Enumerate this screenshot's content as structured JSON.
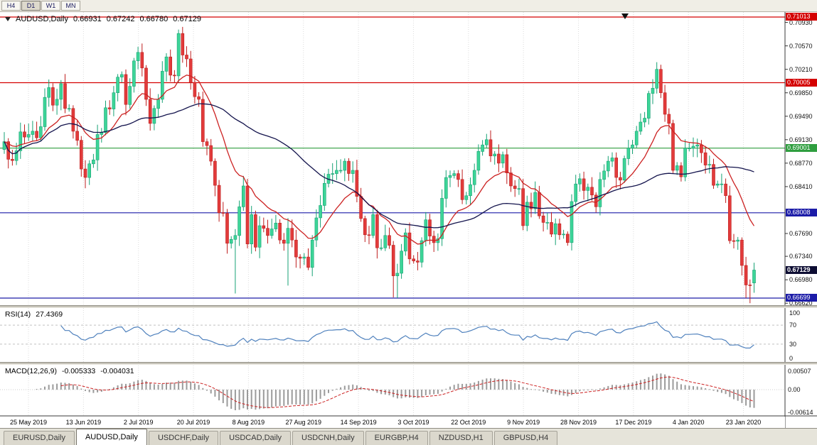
{
  "toolbar": {
    "timeframes": [
      "H4",
      "D1",
      "W1",
      "MN"
    ],
    "active": "D1"
  },
  "chart": {
    "title": "AUDUSD,Daily",
    "ohlc": {
      "open": "0.66931",
      "high": "0.67242",
      "low": "0.66780",
      "close": "0.67129"
    }
  },
  "chart_data": {
    "type": "candlestick",
    "symbol": "AUDUSD",
    "timeframe": "Daily",
    "ylim": [
      0.6655,
      0.7109
    ],
    "x_ticks": [
      "25 May 2019",
      "13 Jun 2019",
      "2 Jul 2019",
      "20 Jul 2019",
      "8 Aug 2019",
      "27 Aug 2019",
      "14 Sep 2019",
      "3 Oct 2019",
      "22 Oct 2019",
      "9 Nov 2019",
      "28 Nov 2019",
      "17 Dec 2019",
      "4 Jan 2020",
      "23 Jan 2020"
    ],
    "price_ticks": [
      "0.70930",
      "0.70570",
      "0.70210",
      "0.69850",
      "0.69490",
      "0.69130",
      "0.68770",
      "0.68410",
      "0.67690",
      "0.67340",
      "0.66980",
      "0.66620"
    ],
    "hlines": [
      {
        "price": 0.71013,
        "label": "0.71013",
        "color": "#d40000"
      },
      {
        "price": 0.70005,
        "label": "0.70005",
        "color": "#d40000"
      },
      {
        "price": 0.69001,
        "label": "0.69001",
        "color": "#2f9e3f"
      },
      {
        "price": 0.68008,
        "label": "0.68008",
        "color": "#1c1ca8"
      },
      {
        "price": 0.66699,
        "label": "0.66699",
        "color": "#1c1ca8"
      }
    ],
    "current_price": {
      "value": 0.67129,
      "label": "0.67129",
      "color": "#0d0d33"
    },
    "candle_colors": {
      "up": "#3dd598",
      "up_border": "#17a274",
      "down": "#e23b3b",
      "down_border": "#bf1f1f"
    },
    "ma_lines": [
      {
        "type": "ema",
        "period": 15,
        "color": "#cc2222"
      },
      {
        "type": "sma",
        "period": 45,
        "color": "#14144d"
      }
    ],
    "closes": [
      0.691,
      0.6883,
      0.6881,
      0.6896,
      0.6925,
      0.6917,
      0.6921,
      0.6926,
      0.6916,
      0.6933,
      0.6978,
      0.6993,
      0.6966,
      0.6975,
      0.6999,
      0.6961,
      0.6961,
      0.6926,
      0.6912,
      0.6868,
      0.6855,
      0.6876,
      0.6882,
      0.6921,
      0.6924,
      0.6962,
      0.696,
      0.6985,
      0.7009,
      0.7013,
      0.6967,
      0.6995,
      0.7034,
      0.7047,
      0.7023,
      0.6975,
      0.6938,
      0.6961,
      0.6975,
      0.7018,
      0.704,
      0.7012,
      0.7011,
      0.7076,
      0.7043,
      0.7037,
      0.7001,
      0.6979,
      0.6975,
      0.691,
      0.6904,
      0.688,
      0.6843,
      0.6801,
      0.68,
      0.6754,
      0.676,
      0.6766,
      0.681,
      0.6842,
      0.6753,
      0.6798,
      0.6748,
      0.6781,
      0.6777,
      0.6766,
      0.6776,
      0.6785,
      0.6759,
      0.6754,
      0.6777,
      0.6759,
      0.6733,
      0.6731,
      0.6733,
      0.6717,
      0.6759,
      0.6793,
      0.6812,
      0.6846,
      0.686,
      0.6861,
      0.6866,
      0.6866,
      0.688,
      0.6861,
      0.6866,
      0.6826,
      0.6792,
      0.6767,
      0.6766,
      0.6798,
      0.6747,
      0.6747,
      0.6766,
      0.6751,
      0.6704,
      0.6708,
      0.6742,
      0.677,
      0.673,
      0.6727,
      0.6725,
      0.6758,
      0.679,
      0.6765,
      0.6755,
      0.6761,
      0.6823,
      0.6855,
      0.6858,
      0.6861,
      0.6852,
      0.6821,
      0.6827,
      0.6844,
      0.6866,
      0.6895,
      0.6905,
      0.6913,
      0.6888,
      0.6891,
      0.6877,
      0.689,
      0.6862,
      0.6842,
      0.6838,
      0.6838,
      0.6781,
      0.6817,
      0.6807,
      0.6832,
      0.6796,
      0.6786,
      0.6786,
      0.6768,
      0.6784,
      0.6767,
      0.6768,
      0.6755,
      0.6818,
      0.6845,
      0.6853,
      0.6835,
      0.684,
      0.6828,
      0.681,
      0.6852,
      0.6865,
      0.688,
      0.6885,
      0.6855,
      0.6851,
      0.6884,
      0.69,
      0.6905,
      0.6926,
      0.694,
      0.6946,
      0.6984,
      0.6992,
      0.7021,
      0.6985,
      0.6952,
      0.6938,
      0.6866,
      0.6873,
      0.6856,
      0.69,
      0.69,
      0.6903,
      0.6905,
      0.6893,
      0.6874,
      0.6875,
      0.6843,
      0.6845,
      0.6845,
      0.6827,
      0.6758,
      0.6757,
      0.6759,
      0.672,
      0.669,
      0.6689,
      0.6713
    ],
    "wick_overrides": {
      "43": {
        "high": 0.7082
      },
      "57": {
        "low": 0.6677
      },
      "70": {
        "low": 0.6689
      },
      "96": {
        "low": 0.6671
      },
      "97": {
        "low": 0.667
      },
      "160": {
        "high": 0.7006
      },
      "161": {
        "high": 0.7032
      },
      "183": {
        "low": 0.667
      },
      "184": {
        "low": 0.6662
      },
      "185": {
        "open": 0.66931,
        "high": 0.67242,
        "low": 0.6678,
        "close": 0.67129
      }
    },
    "indicators": {
      "rsi": {
        "label": "RSI(14)",
        "period": 14,
        "value": "27.4369",
        "levels": [
          100,
          70,
          30,
          0
        ],
        "line_color": "#4f81bd"
      },
      "macd": {
        "label": "MACD(12,26,9)",
        "fast": 12,
        "slow": 26,
        "signal": 9,
        "main_value": "-0.005333",
        "signal_value": "-0.004031",
        "axis_ticks": [
          {
            "v": 0.00507,
            "label": "0.00507"
          },
          {
            "v": 0,
            "label": "0.00"
          },
          {
            "v": -0.00614,
            "label": "-0.00614"
          }
        ],
        "histogram_color": "#9b9b9b",
        "signal_color": "#cc2222"
      }
    }
  },
  "tabs": [
    {
      "label": "EURUSD,Daily",
      "active": false
    },
    {
      "label": "AUDUSD,Daily",
      "active": true
    },
    {
      "label": "USDCHF,Daily",
      "active": false
    },
    {
      "label": "USDCAD,Daily",
      "active": false
    },
    {
      "label": "USDCNH,Daily",
      "active": false
    },
    {
      "label": "EURGBP,H4",
      "active": false
    },
    {
      "label": "NZDUSD,H1",
      "active": false
    },
    {
      "label": "GBPUSD,H4",
      "active": false
    }
  ]
}
